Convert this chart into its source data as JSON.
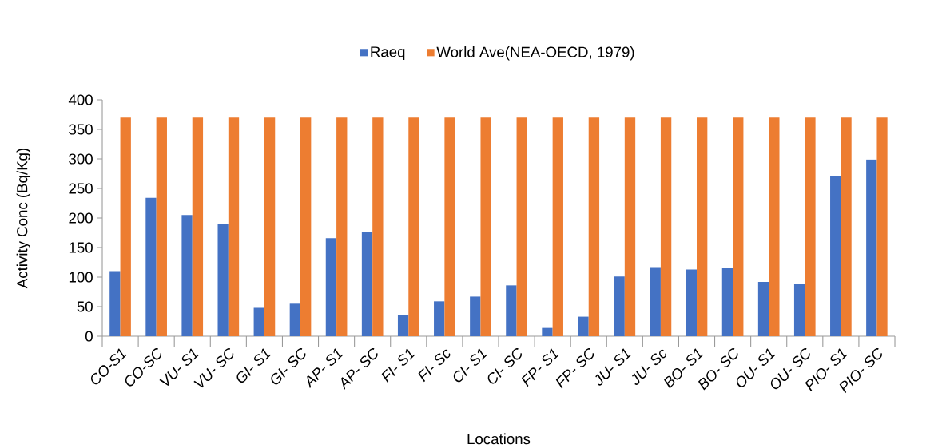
{
  "chart_data": {
    "type": "bar",
    "xlabel": "Locations",
    "ylabel": "Activity Conc (Bq/Kg)",
    "categories": [
      "CO-S1",
      "CO-SC",
      "VU- S1",
      "VU- SC",
      "GI- S1",
      "GI- SC",
      "AP- S1",
      "AP- SC",
      "FI- S1",
      "FI- Sc",
      "CI- S1",
      "CI- SC",
      "FP- S1",
      "FP- SC",
      "JU- S1",
      "JU- Sc",
      "BO- S1",
      "BO- SC",
      "OU- S1",
      "OU- SC",
      "PIO- S1",
      "PIO- SC"
    ],
    "series": [
      {
        "name": "Raeq",
        "color": "#4472c4",
        "values": [
          110,
          234,
          205,
          190,
          48,
          55,
          166,
          177,
          36,
          59,
          67,
          86,
          14,
          33,
          101,
          117,
          113,
          115,
          92,
          88,
          271,
          299
        ]
      },
      {
        "name": "World Ave(NEA-OECD, 1979)",
        "color": "#ed7d31",
        "values": [
          370,
          370,
          370,
          370,
          370,
          370,
          370,
          370,
          370,
          370,
          370,
          370,
          370,
          370,
          370,
          370,
          370,
          370,
          370,
          370,
          370,
          370
        ]
      }
    ],
    "ylim": [
      0,
      400
    ],
    "yticks": [
      0,
      50,
      100,
      150,
      200,
      250,
      300,
      350,
      400
    ],
    "grid": false,
    "legend": "top"
  }
}
